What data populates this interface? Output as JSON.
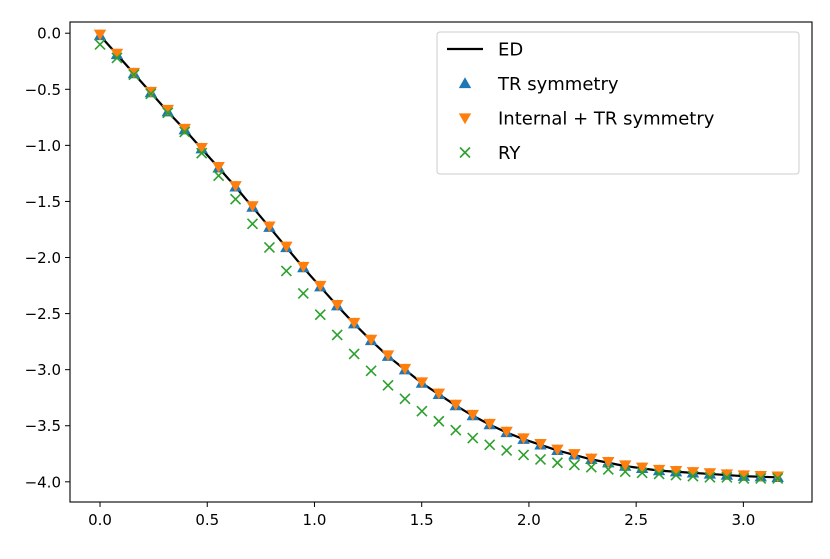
{
  "chart_data": {
    "type": "line",
    "title": "",
    "xlabel": "",
    "ylabel": "",
    "xlim": [
      -0.14,
      3.32
    ],
    "ylim": [
      -4.18,
      0.1
    ],
    "grid": false,
    "legend_position": "upper right",
    "xticks": [
      0.0,
      0.5,
      1.0,
      1.5,
      2.0,
      2.5,
      3.0
    ],
    "xtick_labels": [
      "0.0",
      "0.5",
      "1.0",
      "1.5",
      "2.0",
      "2.5",
      "3.0"
    ],
    "yticks": [
      0.0,
      -0.5,
      -1.0,
      -1.5,
      -2.0,
      -2.5,
      -3.0,
      -3.5,
      -4.0
    ],
    "ytick_labels": [
      "0.0",
      "−0.5",
      "−1.0",
      "−1.5",
      "−2.0",
      "−2.5",
      "−3.0",
      "−3.5",
      "−4.0"
    ],
    "x": [
      0.0,
      0.079,
      0.158,
      0.237,
      0.316,
      0.395,
      0.474,
      0.553,
      0.632,
      0.711,
      0.79,
      0.869,
      0.948,
      1.027,
      1.106,
      1.185,
      1.264,
      1.343,
      1.422,
      1.501,
      1.58,
      1.659,
      1.738,
      1.817,
      1.896,
      1.975,
      2.054,
      2.133,
      2.212,
      2.291,
      2.37,
      2.449,
      2.528,
      2.607,
      2.686,
      2.765,
      2.844,
      2.923,
      3.002,
      3.081,
      3.16
    ],
    "series": [
      {
        "name": "ED",
        "style": "line",
        "color": "#000000",
        "values": [
          -0.02,
          -0.19,
          -0.36,
          -0.53,
          -0.7,
          -0.86,
          -1.03,
          -1.2,
          -1.37,
          -1.55,
          -1.73,
          -1.91,
          -2.09,
          -2.26,
          -2.43,
          -2.59,
          -2.74,
          -2.88,
          -3.0,
          -3.12,
          -3.22,
          -3.32,
          -3.41,
          -3.49,
          -3.56,
          -3.62,
          -3.67,
          -3.72,
          -3.76,
          -3.8,
          -3.83,
          -3.86,
          -3.88,
          -3.9,
          -3.91,
          -3.92,
          -3.93,
          -3.94,
          -3.95,
          -3.955,
          -3.96
        ]
      },
      {
        "name": "TR symmetry",
        "style": "marker",
        "marker": "triangle-up",
        "color": "#1f77b4",
        "values": [
          -0.02,
          -0.19,
          -0.36,
          -0.53,
          -0.7,
          -0.86,
          -1.03,
          -1.2,
          -1.37,
          -1.55,
          -1.73,
          -1.91,
          -2.09,
          -2.26,
          -2.43,
          -2.59,
          -2.74,
          -2.88,
          -3.0,
          -3.12,
          -3.22,
          -3.32,
          -3.41,
          -3.49,
          -3.56,
          -3.62,
          -3.67,
          -3.72,
          -3.76,
          -3.8,
          -3.83,
          -3.86,
          -3.88,
          -3.9,
          -3.91,
          -3.92,
          -3.93,
          -3.94,
          -3.95,
          -3.955,
          -3.96
        ]
      },
      {
        "name": "Internal + TR symmetry",
        "style": "marker",
        "marker": "triangle-down",
        "color": "#ff7f0e",
        "values": [
          -0.01,
          -0.18,
          -0.35,
          -0.52,
          -0.68,
          -0.85,
          -1.02,
          -1.19,
          -1.36,
          -1.54,
          -1.72,
          -1.9,
          -2.08,
          -2.25,
          -2.42,
          -2.58,
          -2.73,
          -2.87,
          -2.99,
          -3.11,
          -3.21,
          -3.31,
          -3.4,
          -3.48,
          -3.55,
          -3.61,
          -3.66,
          -3.71,
          -3.75,
          -3.79,
          -3.82,
          -3.85,
          -3.87,
          -3.89,
          -3.9,
          -3.91,
          -3.92,
          -3.93,
          -3.94,
          -3.945,
          -3.95
        ]
      },
      {
        "name": "RY",
        "style": "marker",
        "marker": "x",
        "color": "#2ca02c",
        "values": [
          -0.1,
          -0.22,
          -0.37,
          -0.54,
          -0.71,
          -0.88,
          -1.07,
          -1.27,
          -1.48,
          -1.7,
          -1.91,
          -2.12,
          -2.32,
          -2.51,
          -2.69,
          -2.86,
          -3.01,
          -3.14,
          -3.26,
          -3.37,
          -3.46,
          -3.54,
          -3.61,
          -3.67,
          -3.72,
          -3.76,
          -3.8,
          -3.83,
          -3.85,
          -3.87,
          -3.89,
          -3.91,
          -3.92,
          -3.93,
          -3.94,
          -3.95,
          -3.96,
          -3.96,
          -3.97,
          -3.97,
          -3.97
        ]
      }
    ]
  }
}
